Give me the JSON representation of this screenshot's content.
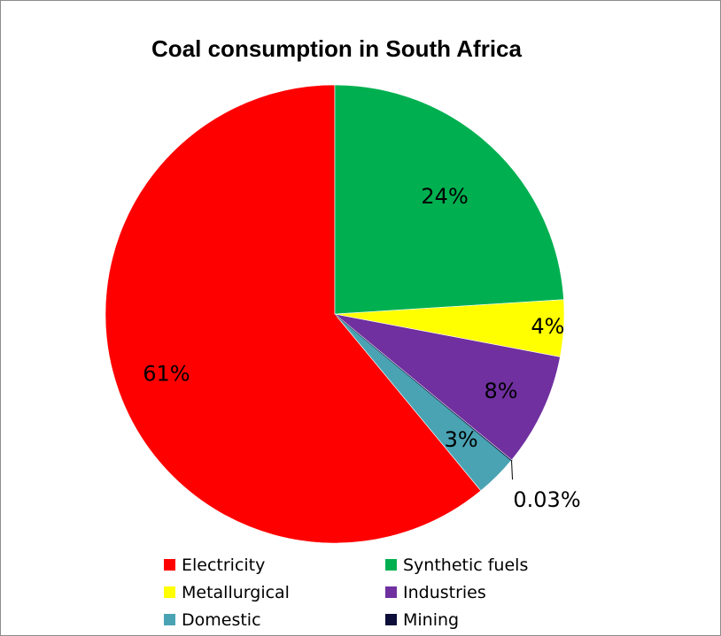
{
  "chart_data": {
    "type": "pie",
    "title": "Coal consumption in South Africa",
    "series": [
      {
        "name": "Electricity",
        "value": 61,
        "label": "61%",
        "color": "#ff0000"
      },
      {
        "name": "Domestic",
        "value": 3,
        "label": "3%",
        "color": "#4aa3b3"
      },
      {
        "name": "Mining",
        "value": 0.03,
        "label": "0.03%",
        "color": "#0d0d3a"
      },
      {
        "name": "Industries",
        "value": 8,
        "label": "8%",
        "color": "#7030a0"
      },
      {
        "name": "Metallurgical",
        "value": 4,
        "label": "4%",
        "color": "#ffff00"
      },
      {
        "name": "Synthetic fuels",
        "value": 24,
        "label": "24%",
        "color": "#00b050"
      }
    ],
    "legend_order": [
      "Electricity",
      "Synthetic fuels",
      "Metallurgical",
      "Industries",
      "Domestic",
      "Mining"
    ],
    "legend_position": "bottom"
  }
}
